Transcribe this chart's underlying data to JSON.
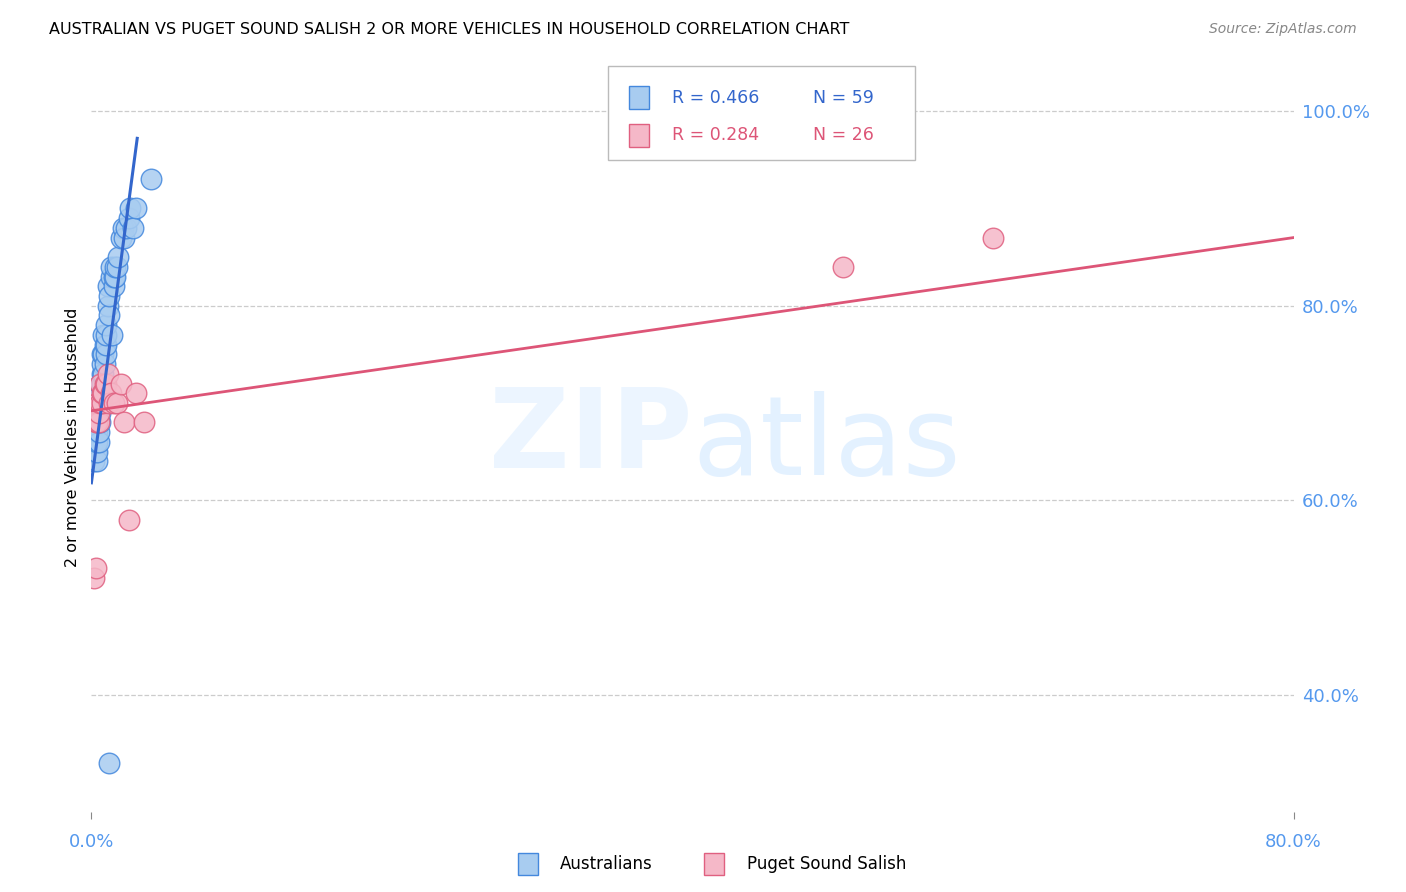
{
  "title": "AUSTRALIAN VS PUGET SOUND SALISH 2 OR MORE VEHICLES IN HOUSEHOLD CORRELATION CHART",
  "source": "Source: ZipAtlas.com",
  "ylabel_label": "2 or more Vehicles in Household",
  "legend_blue_r": "R = 0.466",
  "legend_blue_n": "N = 59",
  "legend_pink_r": "R = 0.284",
  "legend_pink_n": "N = 26",
  "legend_label_blue": "Australians",
  "legend_label_pink": "Puget Sound Salish",
  "blue_color": "#A8CCF0",
  "pink_color": "#F5B8C8",
  "blue_edge_color": "#4488DD",
  "pink_edge_color": "#E06080",
  "blue_line_color": "#3366CC",
  "pink_line_color": "#DD5577",
  "axis_tick_color": "#5599EE",
  "grid_color": "#CCCCCC",
  "background_color": "#FFFFFF",
  "xlim": [
    0.0,
    0.8
  ],
  "ylim": [
    0.28,
    1.05
  ],
  "xtick_vals": [
    0.0,
    0.8
  ],
  "xtick_labels": [
    "0.0%",
    "80.0%"
  ],
  "ytick_vals": [
    0.4,
    0.6,
    0.8,
    1.0
  ],
  "ytick_labels": [
    "40.0%",
    "60.0%",
    "80.0%",
    "100.0%"
  ],
  "blue_scatter_x": [
    0.002,
    0.002,
    0.002,
    0.002,
    0.003,
    0.003,
    0.003,
    0.003,
    0.003,
    0.004,
    0.004,
    0.004,
    0.004,
    0.004,
    0.005,
    0.005,
    0.005,
    0.005,
    0.006,
    0.006,
    0.006,
    0.006,
    0.006,
    0.007,
    0.007,
    0.007,
    0.007,
    0.008,
    0.008,
    0.008,
    0.009,
    0.009,
    0.01,
    0.01,
    0.01,
    0.01,
    0.011,
    0.011,
    0.012,
    0.012,
    0.013,
    0.013,
    0.014,
    0.015,
    0.015,
    0.016,
    0.016,
    0.017,
    0.018,
    0.02,
    0.021,
    0.022,
    0.023,
    0.025,
    0.026,
    0.028,
    0.03,
    0.04,
    0.012
  ],
  "blue_scatter_y": [
    0.64,
    0.65,
    0.66,
    0.67,
    0.65,
    0.66,
    0.67,
    0.68,
    0.69,
    0.64,
    0.65,
    0.66,
    0.67,
    0.68,
    0.66,
    0.67,
    0.68,
    0.69,
    0.68,
    0.69,
    0.7,
    0.71,
    0.72,
    0.72,
    0.73,
    0.74,
    0.75,
    0.73,
    0.75,
    0.77,
    0.74,
    0.76,
    0.75,
    0.76,
    0.77,
    0.78,
    0.8,
    0.82,
    0.79,
    0.81,
    0.83,
    0.84,
    0.77,
    0.82,
    0.83,
    0.83,
    0.84,
    0.84,
    0.85,
    0.87,
    0.88,
    0.87,
    0.88,
    0.89,
    0.9,
    0.88,
    0.9,
    0.93,
    0.33
  ],
  "pink_scatter_x": [
    0.002,
    0.003,
    0.003,
    0.004,
    0.004,
    0.005,
    0.005,
    0.006,
    0.006,
    0.007,
    0.007,
    0.008,
    0.009,
    0.01,
    0.011,
    0.012,
    0.013,
    0.015,
    0.017,
    0.02,
    0.022,
    0.025,
    0.03,
    0.035,
    0.5,
    0.6
  ],
  "pink_scatter_y": [
    0.52,
    0.53,
    0.68,
    0.68,
    0.7,
    0.68,
    0.69,
    0.7,
    0.72,
    0.7,
    0.71,
    0.71,
    0.72,
    0.72,
    0.73,
    0.7,
    0.71,
    0.7,
    0.7,
    0.72,
    0.68,
    0.58,
    0.71,
    0.68,
    0.84,
    0.87
  ],
  "blue_line_x": [
    0.0,
    0.0305
  ],
  "blue_line_y": [
    0.618,
    0.972
  ],
  "pink_line_x": [
    0.0,
    0.8
  ],
  "pink_line_y": [
    0.692,
    0.87
  ]
}
